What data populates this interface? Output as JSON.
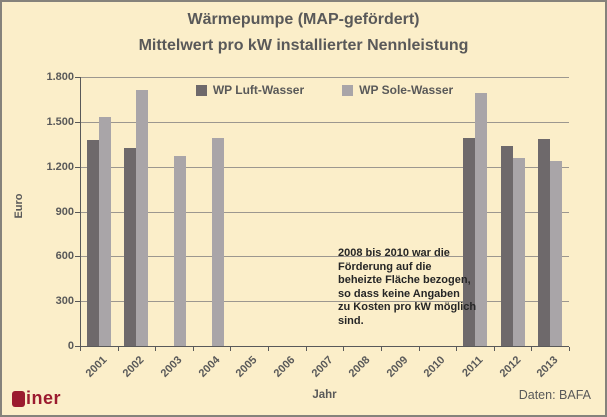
{
  "title": {
    "line1": "Wärmepumpe (MAP-gefördert)",
    "line2": "Mittelwert pro kW installierter Nennleistung"
  },
  "chart_data": {
    "type": "bar",
    "title": "Wärmepumpe (MAP-gefördert) — Mittelwert pro kW installierter Nennleistung",
    "categories": [
      "2001",
      "2002",
      "2003",
      "2004",
      "2005",
      "2006",
      "2007",
      "2008",
      "2009",
      "2010",
      "2011",
      "2012",
      "2013"
    ],
    "series": [
      {
        "name": "WP Luft-Wasser",
        "color": "#6E696B",
        "values": [
          1380,
          1325,
          null,
          null,
          null,
          null,
          null,
          null,
          null,
          null,
          1390,
          1340,
          1385
        ]
      },
      {
        "name": "WP Sole-Wasser",
        "color": "#A9A5A8",
        "values": [
          1535,
          1710,
          1270,
          1395,
          null,
          null,
          null,
          null,
          null,
          null,
          1695,
          1255,
          1235
        ]
      }
    ],
    "xlabel": "Jahr",
    "ylabel": "Euro",
    "ylim": [
      0,
      1800
    ],
    "ytick_step": 300,
    "yticks_labels": [
      "0",
      "300",
      "600",
      "900",
      "1.200",
      "1.500",
      "1.800"
    ],
    "grid": true,
    "legend_position": "top-inside",
    "annotation": "2008 bis 2010 war die\nFörderung auf die\nbeheizte Fläche bezogen,\nso dass keine Angaben\nzu Kosten pro kW möglich\nsind."
  },
  "footer": {
    "logo_text": "iner",
    "source": "Daten: BAFA"
  },
  "colors": {
    "background": "#FBEEC9",
    "frame_border": "#85827B",
    "grid": "#9C978F",
    "axis": "#595959",
    "text": "#595959",
    "annotation_text": "#262626",
    "logo_red": "#9B1B2F",
    "bar_dark": "#6E696B",
    "bar_light": "#A9A5A8"
  }
}
